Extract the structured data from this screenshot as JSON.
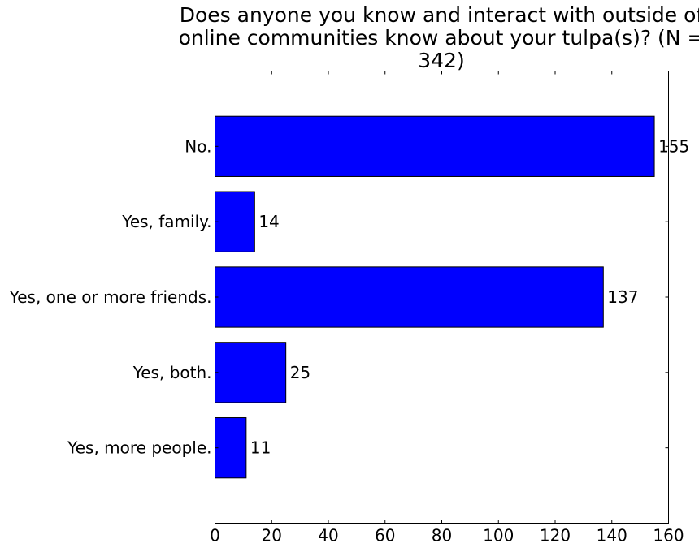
{
  "chart_data": {
    "type": "bar",
    "orientation": "horizontal",
    "title_lines": [
      "Does anyone you know and interact with outside of",
      "online communities know about your tulpa(s)? (N =",
      "342)"
    ],
    "xlabel": "",
    "ylabel": "",
    "categories": [
      "No.",
      "Yes, family.",
      "Yes, one or more friends.",
      "Yes, both.",
      "Yes, more people."
    ],
    "values": [
      155,
      14,
      137,
      25,
      11
    ],
    "xlim": [
      0,
      160
    ],
    "xticks": [
      0,
      20,
      40,
      60,
      80,
      100,
      120,
      140,
      160
    ],
    "bar_color": "#0000ff",
    "edge_color": "#000000",
    "grid": false,
    "legend": "none"
  }
}
